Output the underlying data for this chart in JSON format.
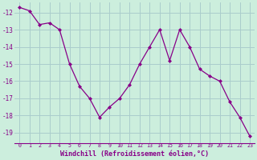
{
  "x": [
    0,
    1,
    2,
    3,
    4,
    5,
    6,
    7,
    8,
    9,
    10,
    11,
    12,
    13,
    14,
    15,
    16,
    17,
    18,
    19,
    20,
    21,
    22,
    23
  ],
  "y": [
    -11.7,
    -11.9,
    -12.7,
    -12.6,
    -13.0,
    -15.0,
    -16.3,
    -17.0,
    -18.1,
    -17.5,
    -17.0,
    -16.2,
    -15.0,
    -14.0,
    -13.0,
    -14.8,
    -13.0,
    -14.0,
    -15.3,
    -15.7,
    -16.0,
    -17.2,
    -18.1,
    -19.2
  ],
  "line_color": "#880088",
  "marker": "D",
  "markersize": 2.0,
  "linewidth": 0.9,
  "bg_color": "#cceedd",
  "grid_color": "#aacccc",
  "xlabel": "Windchill (Refroidissement éolien,°C)",
  "xlabel_fontsize": 6.0,
  "xtick_fontsize": 4.8,
  "ytick_fontsize": 5.5,
  "ylim": [
    -19.6,
    -11.4
  ],
  "xlim": [
    -0.5,
    23.5
  ],
  "yticks": [
    -19,
    -18,
    -17,
    -16,
    -15,
    -14,
    -13,
    -12
  ],
  "xtick_labels": [
    "0",
    "1",
    "2",
    "3",
    "4",
    "5",
    "6",
    "7",
    "8",
    "9",
    "10",
    "11",
    "12",
    "13",
    "14",
    "15",
    "16",
    "17",
    "18",
    "19",
    "20",
    "21",
    "22",
    "23"
  ]
}
